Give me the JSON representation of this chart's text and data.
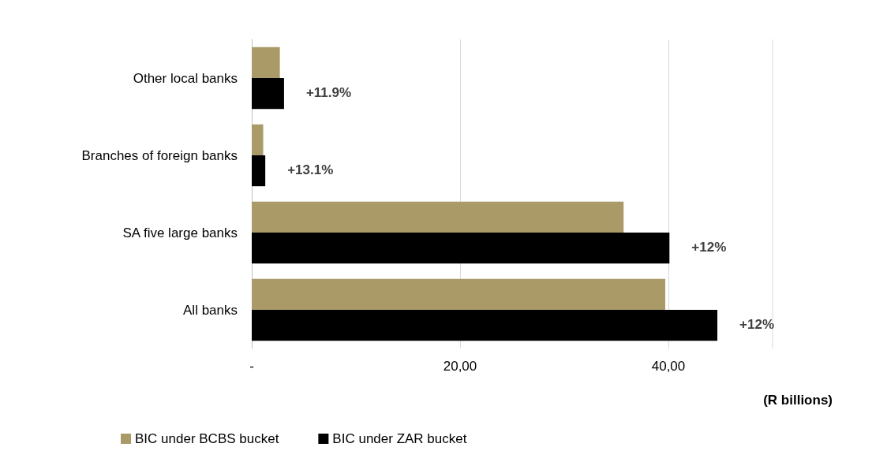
{
  "chart_data": {
    "type": "bar",
    "orientation": "horizontal",
    "categories": [
      "Other local banks",
      "Branches of foreign banks",
      "SA five large banks",
      "All banks"
    ],
    "series": [
      {
        "name": "BIC under BCBS bucket",
        "color": "#a99a68",
        "values": [
          2.7,
          1.1,
          35.7,
          39.7
        ]
      },
      {
        "name": "BIC under ZAR bucket",
        "color": "#000000",
        "values": [
          3.1,
          1.3,
          40.1,
          44.7
        ]
      }
    ],
    "xlim": [
      0,
      50
    ],
    "xticks": [
      {
        "value": 0,
        "label": "-"
      },
      {
        "value": 20,
        "label": "20,00"
      },
      {
        "value": 40,
        "label": "40,00"
      }
    ],
    "xlabel": "(R billions)",
    "grid": "x",
    "legend": "bottom left",
    "annotations": [
      {
        "text": "+11.9%",
        "x": 3.1,
        "y": "Other local banks"
      },
      {
        "text": "+13.1%",
        "x": 1.3,
        "y": "Branches of foreign banks"
      },
      {
        "text": "+12%",
        "x": 40.1,
        "y": "SA five large banks"
      },
      {
        "text": "+12%",
        "x": 44.7,
        "y": "All banks"
      }
    ]
  }
}
